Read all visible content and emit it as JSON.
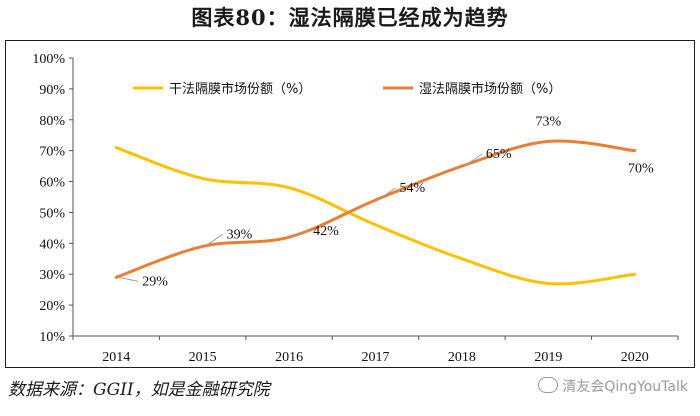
{
  "header": {
    "title": "图表80：湿法隔膜已经成为趋势"
  },
  "footer": {
    "source": "数据来源：GGII，如是金融研究院",
    "watermark": "清友会QingYouTalk"
  },
  "chart_data": {
    "type": "line",
    "title": "图表80：湿法隔膜已经成为趋势",
    "xlabel": "",
    "ylabel": "",
    "x": [
      "2014",
      "2015",
      "2016",
      "2017",
      "2018",
      "2019",
      "2020"
    ],
    "ylim": [
      10,
      100
    ],
    "yticks": [
      "10%",
      "20%",
      "30%",
      "40%",
      "50%",
      "60%",
      "70%",
      "80%",
      "90%",
      "100%"
    ],
    "legend_position": "top",
    "grid": false,
    "series": [
      {
        "name": "干法隔膜市场份额（%）",
        "color": "#ffc000",
        "values": [
          71,
          61,
          58,
          46,
          35,
          27,
          30
        ],
        "labels": []
      },
      {
        "name": "湿法隔膜市场份额（%）",
        "color": "#ed7d31",
        "values": [
          29,
          39,
          42,
          54,
          65,
          73,
          70
        ],
        "labels": [
          "29%",
          "39%",
          "42%",
          "54%",
          "65%",
          "73%",
          "70%"
        ]
      }
    ]
  }
}
